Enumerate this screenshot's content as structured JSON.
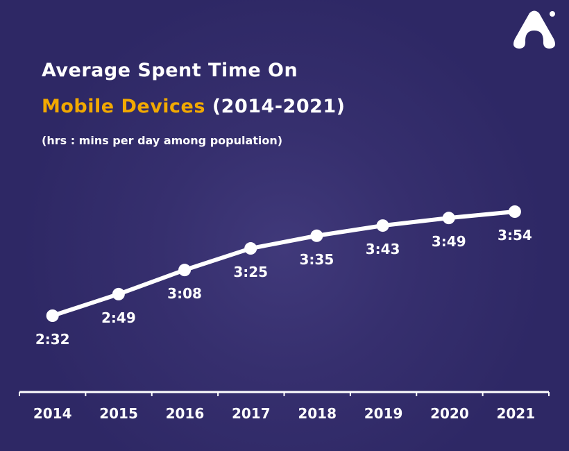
{
  "title_line1": "Average Spent Time On",
  "title_highlight": "Mobile Devices",
  "title_rest": " (2014-2021)",
  "subtitle": "(hrs : mins per day among population)",
  "colors": {
    "background": "#2e2865",
    "highlight": "#f2a900",
    "line": "#ffffff"
  },
  "logo_icon": "a-shaped-logo-icon",
  "chart_data": {
    "type": "line",
    "title": "Average Spent Time On Mobile Devices (2014-2021)",
    "subtitle": "(hrs : mins per day among population)",
    "categories": [
      "2014",
      "2015",
      "2016",
      "2017",
      "2018",
      "2019",
      "2020",
      "2021"
    ],
    "values": [
      152,
      169,
      188,
      205,
      215,
      223,
      229,
      234
    ],
    "labels": [
      "2:32",
      "2:49",
      "3:08",
      "3:25",
      "3:35",
      "3:43",
      "3:49",
      "3:54"
    ],
    "grid": false
  }
}
